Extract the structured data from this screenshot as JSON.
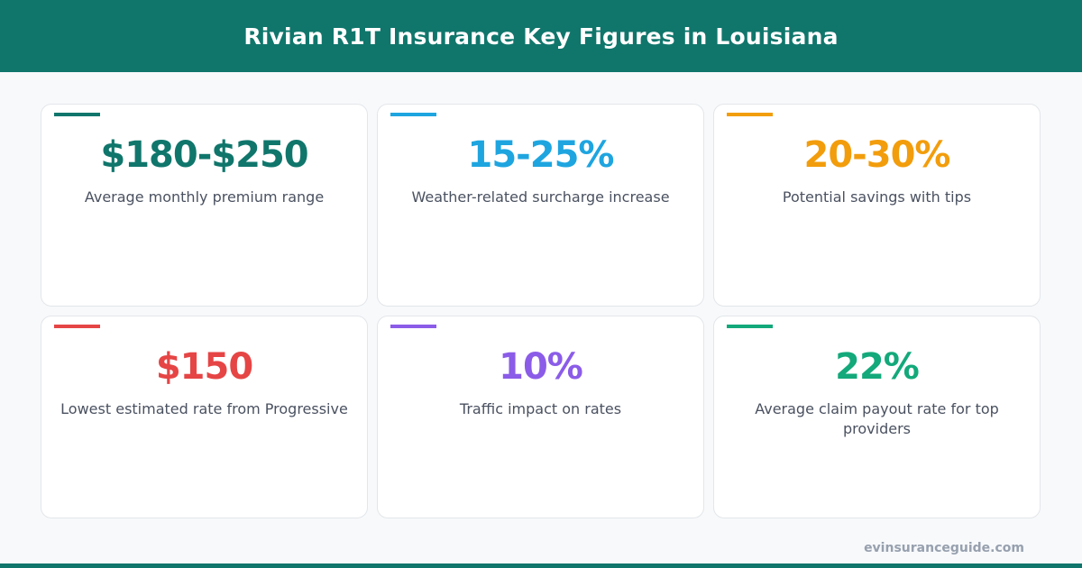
{
  "title": "Rivian R1T Insurance Key Figures in Louisiana",
  "cards": [
    {
      "value": "$180-$250",
      "label": "Average monthly premium range",
      "color": "#10766c"
    },
    {
      "value": "15-25%",
      "label": "Weather-related surcharge increase",
      "color": "#1ea5e0"
    },
    {
      "value": "20-30%",
      "label": "Potential savings with tips",
      "color": "#f29d0c"
    },
    {
      "value": "$150",
      "label": "Lowest estimated rate from Progressive",
      "color": "#e64545"
    },
    {
      "value": "10%",
      "label": "Traffic impact on rates",
      "color": "#8b5ce8"
    },
    {
      "value": "22%",
      "label": "Average claim payout rate for top providers",
      "color": "#13a97a"
    }
  ],
  "footer": "evinsuranceguide.com"
}
